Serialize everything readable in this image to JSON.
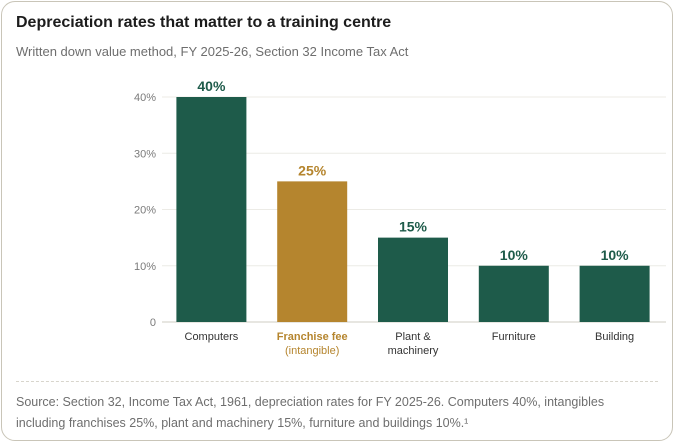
{
  "chart_data": {
    "type": "bar",
    "title": "Depreciation rates that matter to a training centre",
    "subtitle": "Written down value method, FY 2025-26, Section 32 Income Tax Act",
    "categories": [
      {
        "lines": [
          "Computers"
        ],
        "value": 40,
        "label": "40%",
        "highlight": false
      },
      {
        "lines": [
          "Franchise fee",
          "(intangible)"
        ],
        "value": 25,
        "label": "25%",
        "highlight": true
      },
      {
        "lines": [
          "Plant &",
          "machinery"
        ],
        "value": 15,
        "label": "15%",
        "highlight": false
      },
      {
        "lines": [
          "Furniture"
        ],
        "value": 10,
        "label": "10%",
        "highlight": false
      },
      {
        "lines": [
          "Building"
        ],
        "value": 10,
        "label": "10%",
        "highlight": false
      }
    ],
    "values": [
      40,
      25,
      15,
      10,
      10
    ],
    "ylim": [
      0,
      40
    ],
    "yticks": [
      {
        "value": 0,
        "label": "0"
      },
      {
        "value": 10,
        "label": "10%"
      },
      {
        "value": 20,
        "label": "20%"
      },
      {
        "value": 30,
        "label": "30%"
      },
      {
        "value": 40,
        "label": "40%"
      }
    ],
    "grid": true,
    "colors": {
      "default": "#1e5b4a",
      "highlight": "#b5852e"
    }
  },
  "source": "Source: Section 32, Income Tax Act, 1961, depreciation rates for FY 2025-26. Computers 40%, intangibles including franchises 25%, plant and machinery 15%, furniture and buildings 10%.¹"
}
